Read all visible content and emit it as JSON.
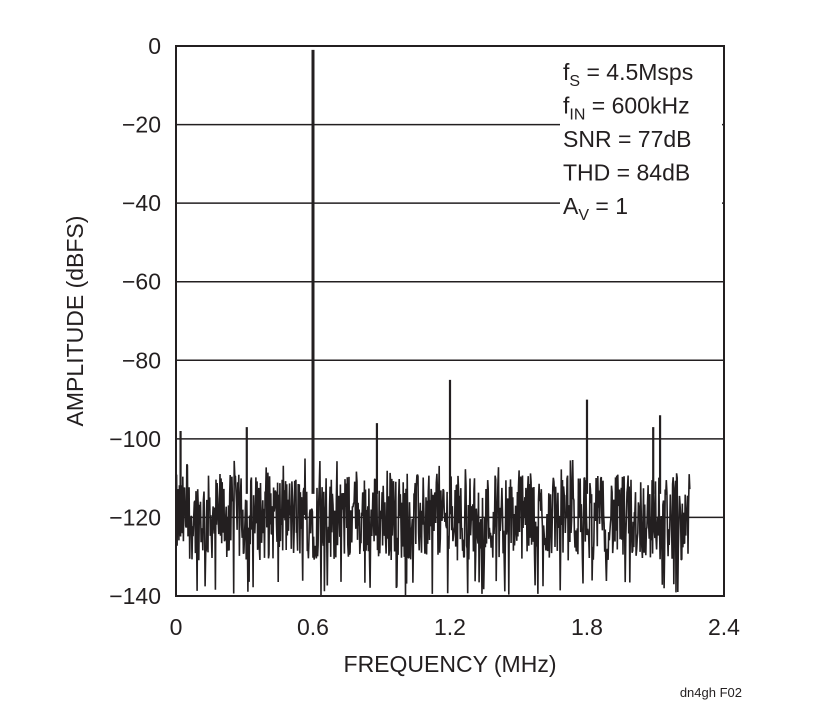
{
  "chart_data": {
    "type": "line",
    "title": "",
    "xlabel": "FREQUENCY (MHz)",
    "ylabel": "AMPLITUDE (dBFS)",
    "xlim": [
      0,
      2.4
    ],
    "ylim": [
      -140,
      0
    ],
    "x_ticks": [
      "0",
      "0.6",
      "1.2",
      "1.8",
      "2.4"
    ],
    "y_ticks": [
      "0",
      "−20",
      "−40",
      "−60",
      "−80",
      "−100",
      "−120",
      "−140"
    ],
    "grid": {
      "horizontal": true,
      "vertical": false
    },
    "noise_floor": {
      "x_range": [
        0,
        2.25
      ],
      "typical_dBFS": -120,
      "min_dBFS": -140,
      "max_dBFS": -105
    },
    "peaks": [
      {
        "x": 0.02,
        "y": -98
      },
      {
        "x": 0.31,
        "y": -97
      },
      {
        "x": 0.6,
        "y": -1
      },
      {
        "x": 0.88,
        "y": -96
      },
      {
        "x": 1.2,
        "y": -85
      },
      {
        "x": 1.8,
        "y": -90
      },
      {
        "x": 2.09,
        "y": -97
      },
      {
        "x": 2.12,
        "y": -94
      }
    ],
    "annotations": [
      {
        "main": "f",
        "sub": "S",
        "rest": " = 4.5Msps"
      },
      {
        "main": "f",
        "sub": "IN",
        "rest": " = 600kHz"
      },
      {
        "main": "SNR = 77dB",
        "sub": "",
        "rest": ""
      },
      {
        "main": "THD = 84dB",
        "sub": "",
        "rest": ""
      },
      {
        "main": "A",
        "sub": "V",
        "rest": " = 1"
      }
    ]
  },
  "figure_id": "dn4gh F02",
  "colors": {
    "ink": "#231f20",
    "background": "#ffffff"
  }
}
